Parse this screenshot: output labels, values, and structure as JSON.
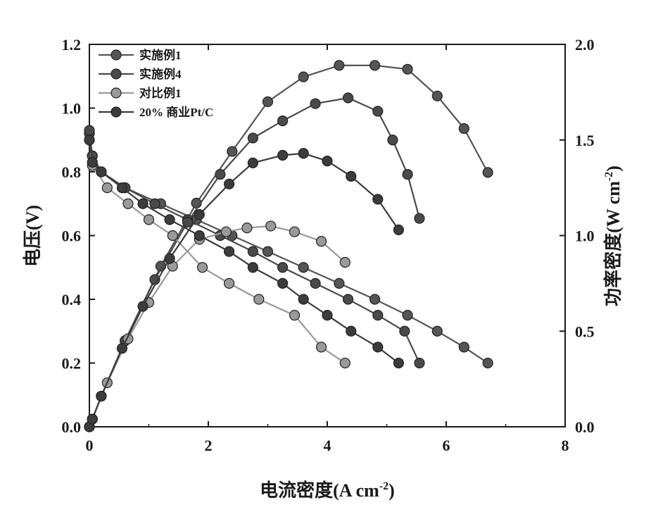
{
  "chart_data": {
    "type": "line",
    "xlabel": "电流密度(A cm",
    "xlabel_sup": "-2",
    "xlabel_end": ")",
    "ylabel_left": "电压(V)",
    "ylabel_right": "功率密度(W cm",
    "ylabel_right_sup": "-2",
    "ylabel_right_end": ")",
    "xlim": [
      0,
      8
    ],
    "ylim_left": [
      0,
      1.2
    ],
    "ylim_right": [
      0,
      2.0
    ],
    "x_ticks": [
      "0",
      "2",
      "4",
      "6",
      "8"
    ],
    "y_left_ticks": [
      "0.0",
      "0.2",
      "0.4",
      "0.6",
      "0.8",
      "1.0",
      "1.2"
    ],
    "y_right_ticks": [
      "0.0",
      "0.5",
      "1.0",
      "1.5",
      "2.0"
    ],
    "legend_position": "top-left",
    "series": [
      {
        "name": "实施例1",
        "color": "#555555",
        "polarization": {
          "x": [
            0,
            0.05,
            0.2,
            0.6,
            1.2,
            1.8,
            2.4,
            3.0,
            3.6,
            4.2,
            4.8,
            5.35,
            5.85,
            6.3,
            6.7
          ],
          "y": [
            0.92,
            0.85,
            0.8,
            0.75,
            0.7,
            0.65,
            0.6,
            0.55,
            0.5,
            0.45,
            0.4,
            0.35,
            0.3,
            0.25,
            0.2
          ]
        },
        "power": {
          "x": [
            0,
            0.05,
            0.2,
            0.6,
            1.2,
            1.8,
            2.4,
            3.0,
            3.6,
            4.2,
            4.8,
            5.35,
            5.85,
            6.3,
            6.7
          ],
          "y": [
            0,
            0.04,
            0.16,
            0.45,
            0.84,
            1.17,
            1.44,
            1.7,
            1.83,
            1.89,
            1.89,
            1.87,
            1.73,
            1.56,
            1.33
          ]
        }
      },
      {
        "name": "实施例4",
        "color": "#4a4a4a",
        "polarization": {
          "x": [
            0,
            0.05,
            0.2,
            0.6,
            1.1,
            1.65,
            2.2,
            2.75,
            3.25,
            3.8,
            4.35,
            4.85,
            5.3,
            5.55
          ],
          "y": [
            0.93,
            0.85,
            0.8,
            0.75,
            0.7,
            0.65,
            0.6,
            0.55,
            0.5,
            0.45,
            0.4,
            0.35,
            0.3,
            0.2
          ]
        },
        "power": {
          "x": [
            0,
            0.05,
            0.2,
            0.6,
            1.1,
            1.65,
            2.2,
            2.75,
            3.25,
            3.8,
            4.35,
            4.85,
            5.1,
            5.35,
            5.55
          ],
          "y": [
            0,
            0.04,
            0.16,
            0.45,
            0.77,
            1.07,
            1.32,
            1.51,
            1.6,
            1.69,
            1.72,
            1.65,
            1.5,
            1.32,
            1.09
          ]
        }
      },
      {
        "name": "对比例1",
        "color": "#9a9a9a",
        "polarization": {
          "x": [
            0,
            0.05,
            0.3,
            0.65,
            1.0,
            1.4,
            1.9,
            2.35,
            2.85,
            3.45,
            3.9,
            4.3
          ],
          "y": [
            0.9,
            0.82,
            0.75,
            0.7,
            0.65,
            0.6,
            0.5,
            0.45,
            0.4,
            0.35,
            0.25,
            0.2
          ]
        },
        "power": {
          "x": [
            0,
            0.05,
            0.3,
            0.65,
            1.0,
            1.4,
            1.85,
            2.3,
            2.65,
            3.05,
            3.45,
            3.9,
            4.3
          ],
          "y": [
            0,
            0.04,
            0.23,
            0.46,
            0.65,
            0.84,
            0.98,
            1.02,
            1.04,
            1.05,
            1.02,
            0.97,
            0.86
          ]
        }
      },
      {
        "name": "20% 商业Pt/C",
        "color": "#3c3c3c",
        "polarization": {
          "x": [
            0,
            0.05,
            0.2,
            0.55,
            0.9,
            1.35,
            1.85,
            2.35,
            2.75,
            3.25,
            3.6,
            4.0,
            4.4,
            4.85,
            5.2
          ],
          "y": [
            0.9,
            0.83,
            0.8,
            0.75,
            0.7,
            0.65,
            0.6,
            0.55,
            0.5,
            0.45,
            0.4,
            0.35,
            0.3,
            0.25,
            0.2
          ]
        },
        "power": {
          "x": [
            0,
            0.05,
            0.2,
            0.55,
            0.9,
            1.35,
            1.85,
            2.35,
            2.75,
            3.25,
            3.6,
            4.0,
            4.4,
            4.85,
            5.2
          ],
          "y": [
            0,
            0.04,
            0.16,
            0.41,
            0.63,
            0.88,
            1.11,
            1.27,
            1.38,
            1.42,
            1.43,
            1.39,
            1.31,
            1.19,
            1.03
          ]
        }
      }
    ]
  }
}
